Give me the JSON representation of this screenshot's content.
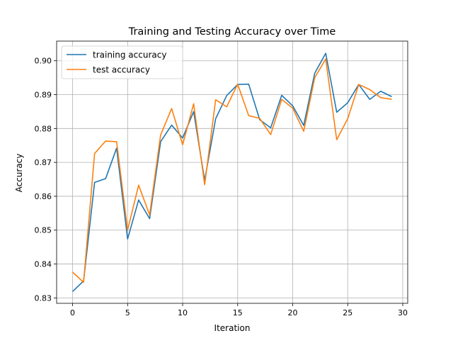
{
  "chart_data": {
    "type": "line",
    "title": "Training and Testing Accuracy over Time",
    "xlabel": "Iteration",
    "ylabel": "Accuracy",
    "xlim": [
      -1.45,
      30.45
    ],
    "ylim": [
      0.8284,
      0.9058
    ],
    "xticks": [
      0,
      5,
      10,
      15,
      20,
      25,
      30
    ],
    "xtick_labels": [
      "0",
      "5",
      "10",
      "15",
      "20",
      "25",
      "30"
    ],
    "yticks": [
      0.83,
      0.84,
      0.85,
      0.86,
      0.87,
      0.88,
      0.89,
      0.9
    ],
    "ytick_labels": [
      "0.83",
      "0.84",
      "0.85",
      "0.86",
      "0.87",
      "0.88",
      "0.89",
      "0.90"
    ],
    "grid": true,
    "legend_position": "upper-left",
    "x": [
      0,
      1,
      2,
      3,
      4,
      5,
      6,
      7,
      8,
      9,
      10,
      11,
      12,
      13,
      14,
      15,
      16,
      17,
      18,
      19,
      20,
      21,
      22,
      23,
      24,
      25,
      26,
      27,
      28,
      29
    ],
    "series": [
      {
        "name": "training accuracy",
        "color": "#1f77b4",
        "values": [
          0.8319,
          0.835,
          0.8641,
          0.8652,
          0.8742,
          0.8474,
          0.8589,
          0.8534,
          0.8761,
          0.881,
          0.8772,
          0.885,
          0.8647,
          0.8829,
          0.8897,
          0.893,
          0.8931,
          0.8826,
          0.8802,
          0.8898,
          0.8867,
          0.8809,
          0.8963,
          0.9022,
          0.8848,
          0.8876,
          0.893,
          0.8886,
          0.891,
          0.8894
        ]
      },
      {
        "name": "test accuracy",
        "color": "#ff7f0e",
        "values": [
          0.8376,
          0.8346,
          0.8726,
          0.8763,
          0.8761,
          0.85,
          0.8633,
          0.8545,
          0.8781,
          0.8859,
          0.8752,
          0.8873,
          0.8634,
          0.8885,
          0.8864,
          0.8931,
          0.8838,
          0.883,
          0.8782,
          0.8886,
          0.886,
          0.8792,
          0.895,
          0.9005,
          0.8767,
          0.8829,
          0.893,
          0.8915,
          0.8891,
          0.8886
        ]
      }
    ]
  }
}
